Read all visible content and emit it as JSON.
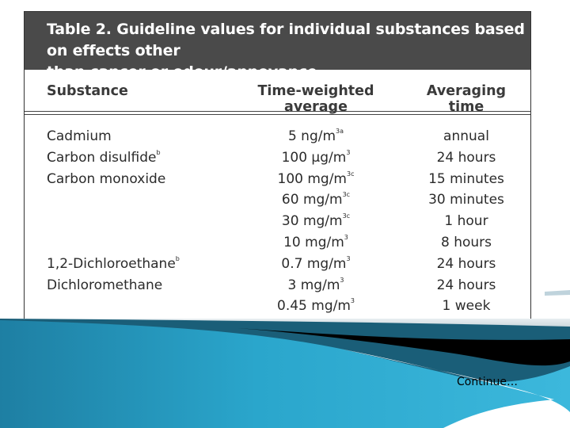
{
  "table": {
    "title_line1": "Table 2. Guideline values for individual substances based on effects other",
    "title_line2": "than cancer or odour/annoyance",
    "headers": [
      "Substance",
      "Time-weighted average",
      "Averaging time"
    ],
    "rows": [
      {
        "substance": "Cadmium",
        "sub_note": "",
        "twa": "5 ng/m",
        "twa_note": "3a",
        "time": "annual"
      },
      {
        "substance": "Carbon disulfide",
        "sub_note": "b",
        "twa": "100 μg/m",
        "twa_note": "3",
        "time": "24 hours"
      },
      {
        "substance": "Carbon monoxide",
        "sub_note": "",
        "twa": "100 mg/m",
        "twa_note": "3c",
        "time": "15 minutes"
      },
      {
        "substance": "",
        "sub_note": "",
        "twa": "60 mg/m",
        "twa_note": "3c",
        "time": "30 minutes"
      },
      {
        "substance": "",
        "sub_note": "",
        "twa": "30 mg/m",
        "twa_note": "3c",
        "time": "1 hour"
      },
      {
        "substance": "",
        "sub_note": "",
        "twa": "10 mg/m",
        "twa_note": "3",
        "time": "8 hours"
      },
      {
        "substance": "1,2-Dichloroethane",
        "sub_note": "b",
        "twa": "0.7 mg/m",
        "twa_note": "3",
        "time": "24 hours"
      },
      {
        "substance": "Dichloromethane",
        "sub_note": "",
        "twa": "3 mg/m",
        "twa_note": "3",
        "time": "24 hours"
      },
      {
        "substance": "",
        "sub_note": "",
        "twa": "0.45 mg/m",
        "twa_note": "3",
        "time": "1 week"
      }
    ]
  },
  "footer": {
    "continue_text": "Continue…"
  },
  "colors": {
    "header_bg": "#4a4a4a",
    "wave_teal": "#2aa6cc",
    "wave_dark": "#1b6f8f",
    "band_black": "#000000"
  }
}
